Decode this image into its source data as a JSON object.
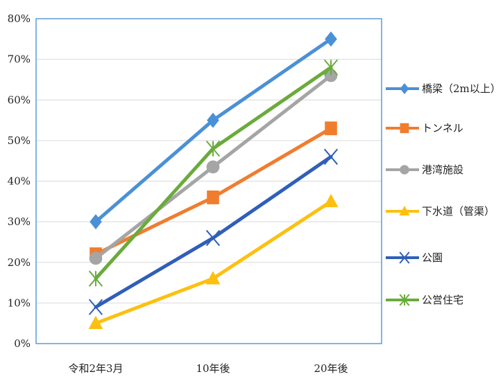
{
  "chart_data": {
    "type": "line",
    "categories": [
      "令和2年3月",
      "10年後",
      "20年後"
    ],
    "y_ticks": [
      "0%",
      "10%",
      "20%",
      "30%",
      "40%",
      "50%",
      "60%",
      "70%",
      "80%"
    ],
    "ylim": [
      0,
      80
    ],
    "grid": true,
    "legend_position": "right",
    "series": [
      {
        "name": "橋梁（2m以上）",
        "values": [
          30,
          55,
          75
        ],
        "color": "#4a90d6",
        "marker": "diamond"
      },
      {
        "name": "トンネル",
        "values": [
          22,
          36,
          53
        ],
        "color": "#f07d2e",
        "marker": "square"
      },
      {
        "name": "港湾施設",
        "values": [
          21,
          43.5,
          66
        ],
        "color": "#a5a5a5",
        "marker": "circle"
      },
      {
        "name": "下水道（管渠）",
        "values": [
          5,
          16,
          35
        ],
        "color": "#fdc010",
        "marker": "triangle"
      },
      {
        "name": "公園",
        "values": [
          9,
          26,
          46
        ],
        "color": "#2f5fb8",
        "marker": "x"
      },
      {
        "name": "公営住宅",
        "values": [
          16,
          48,
          68
        ],
        "color": "#6aab3c",
        "marker": "star"
      }
    ]
  }
}
